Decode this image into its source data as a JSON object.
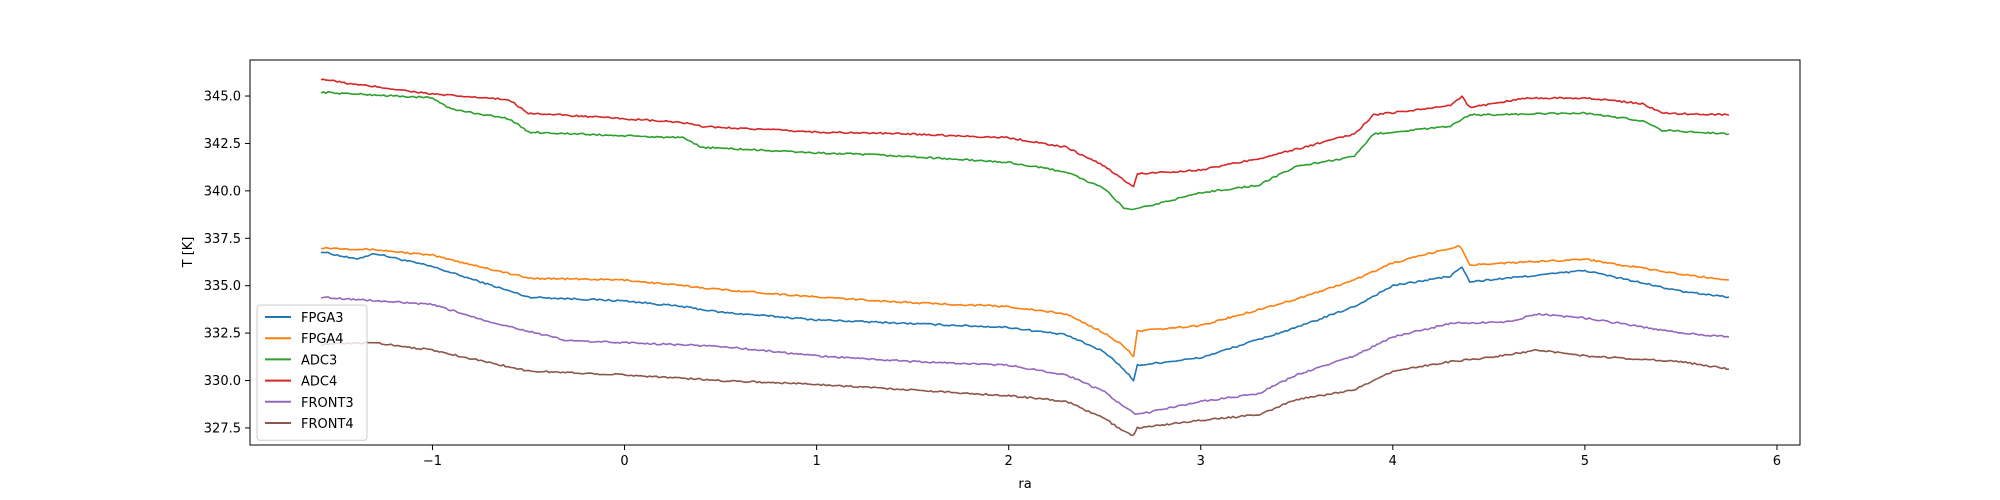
{
  "chart_data": {
    "type": "line",
    "title": "",
    "xlabel": "ra",
    "ylabel": "T [K]",
    "xlim": [
      -1.95,
      6.12
    ],
    "ylim": [
      326.6,
      346.9
    ],
    "xticks": [
      -1,
      0,
      1,
      2,
      3,
      4,
      5,
      6
    ],
    "xtick_labels": [
      "−1",
      "0",
      "1",
      "2",
      "3",
      "4",
      "5",
      "6"
    ],
    "yticks": [
      327.5,
      330.0,
      332.5,
      335.0,
      337.5,
      340.0,
      342.5,
      345.0
    ],
    "ytick_labels": [
      "327.5",
      "330.0",
      "332.5",
      "335.0",
      "337.5",
      "340.0",
      "342.5",
      "345.0"
    ],
    "grid": false,
    "legend_position": "lower-left",
    "series": [
      {
        "name": "FPGA3",
        "color": "#1f77b4",
        "x": [
          -1.58,
          -1.4,
          -1.3,
          -1.0,
          -0.5,
          0.0,
          0.3,
          0.5,
          1.0,
          1.5,
          2.0,
          2.3,
          2.5,
          2.6,
          2.65,
          2.67,
          3.0,
          3.5,
          3.8,
          4.0,
          4.3,
          4.36,
          4.4,
          5.0,
          5.5,
          5.75
        ],
        "y": [
          336.8,
          336.4,
          336.7,
          336.0,
          334.4,
          334.2,
          333.9,
          333.6,
          333.2,
          333.0,
          332.8,
          332.4,
          331.5,
          330.6,
          330.0,
          330.8,
          331.2,
          332.8,
          333.9,
          335.0,
          335.5,
          336.0,
          335.2,
          335.8,
          334.7,
          334.4
        ]
      },
      {
        "name": "FPGA4",
        "color": "#ff7f0e",
        "x": [
          -1.58,
          -1.3,
          -1.0,
          -0.5,
          0.0,
          0.5,
          1.0,
          1.5,
          2.0,
          2.3,
          2.5,
          2.6,
          2.65,
          2.67,
          3.0,
          3.5,
          3.8,
          4.0,
          4.35,
          4.4,
          5.0,
          5.5,
          5.75
        ],
        "y": [
          337.0,
          336.9,
          336.6,
          335.4,
          335.3,
          334.8,
          334.4,
          334.1,
          333.9,
          333.5,
          332.5,
          331.8,
          331.3,
          332.6,
          332.9,
          334.3,
          335.3,
          336.2,
          337.1,
          336.1,
          336.4,
          335.6,
          335.3
        ]
      },
      {
        "name": "ADC3",
        "color": "#2ca02c",
        "x": [
          -1.58,
          -1.0,
          -0.9,
          -0.6,
          -0.5,
          0.0,
          0.3,
          0.4,
          1.0,
          1.3,
          1.5,
          2.0,
          2.3,
          2.5,
          2.6,
          2.65,
          3.0,
          3.3,
          3.5,
          3.8,
          3.9,
          4.3,
          4.4,
          5.0,
          5.3,
          5.4,
          5.75
        ],
        "y": [
          345.2,
          344.9,
          344.3,
          343.8,
          343.1,
          342.9,
          342.8,
          342.3,
          342.0,
          341.9,
          341.8,
          341.5,
          341.0,
          340.1,
          339.1,
          339.0,
          339.9,
          340.3,
          341.3,
          341.8,
          343.0,
          343.4,
          344.0,
          344.1,
          343.7,
          343.2,
          343.0
        ]
      },
      {
        "name": "ADC4",
        "color": "#d62728",
        "x": [
          -1.58,
          -1.4,
          -1.3,
          -1.0,
          -0.6,
          -0.5,
          0.0,
          0.3,
          0.4,
          1.0,
          1.5,
          2.0,
          2.3,
          2.5,
          2.65,
          2.67,
          3.0,
          3.3,
          3.5,
          3.8,
          3.9,
          4.3,
          4.36,
          4.4,
          4.7,
          5.0,
          5.3,
          5.4,
          5.75
        ],
        "y": [
          345.9,
          345.6,
          345.5,
          345.1,
          344.8,
          344.1,
          343.8,
          343.6,
          343.4,
          343.1,
          343.0,
          342.8,
          342.3,
          341.3,
          340.2,
          340.9,
          341.1,
          341.7,
          342.2,
          343.0,
          344.0,
          344.5,
          345.0,
          344.4,
          344.9,
          344.9,
          344.6,
          344.1,
          344.0
        ]
      },
      {
        "name": "FRONT3",
        "color": "#9467bd",
        "x": [
          -1.58,
          -1.0,
          -0.7,
          -0.3,
          0.0,
          0.5,
          1.0,
          1.5,
          2.0,
          2.3,
          2.5,
          2.6,
          2.67,
          3.0,
          3.3,
          3.5,
          3.8,
          4.0,
          4.3,
          4.6,
          4.75,
          5.0,
          5.5,
          5.75
        ],
        "y": [
          334.4,
          334.0,
          333.1,
          332.1,
          332.0,
          331.8,
          331.3,
          331.0,
          330.8,
          330.3,
          329.4,
          328.6,
          328.2,
          328.9,
          329.3,
          330.3,
          331.3,
          332.3,
          333.0,
          333.1,
          333.5,
          333.3,
          332.5,
          332.3
        ]
      },
      {
        "name": "FRONT4",
        "color": "#8c564b",
        "x": [
          -1.58,
          -1.3,
          -1.0,
          -0.5,
          0.0,
          0.5,
          1.0,
          1.5,
          2.0,
          2.3,
          2.5,
          2.6,
          2.65,
          2.67,
          3.0,
          3.3,
          3.5,
          3.8,
          4.0,
          4.3,
          4.5,
          4.75,
          5.0,
          5.5,
          5.75
        ],
        "y": [
          331.9,
          332.0,
          331.6,
          330.5,
          330.3,
          330.0,
          329.8,
          329.5,
          329.2,
          328.9,
          328.0,
          327.3,
          327.1,
          327.5,
          327.9,
          328.2,
          329.0,
          329.5,
          330.5,
          331.0,
          331.2,
          331.6,
          331.3,
          331.0,
          330.6
        ]
      }
    ]
  }
}
